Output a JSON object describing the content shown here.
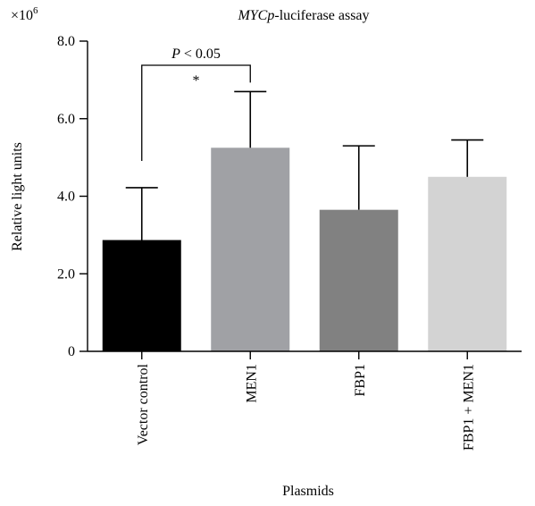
{
  "chart_data": {
    "type": "bar",
    "title_prefix": "MYCp",
    "title_suffix": "-luciferase assay",
    "xlabel": "Plasmids",
    "ylabel": "Relative light units",
    "y_multiplier": "×10",
    "y_multiplier_exp": "6",
    "ylim": [
      0,
      8.0
    ],
    "yticks": [
      0,
      2.0,
      4.0,
      6.0,
      8.0
    ],
    "ytick_labels": [
      "0",
      "2.0",
      "4.0",
      "6.0",
      "8.0"
    ],
    "categories": [
      "Vector control",
      "MEN1",
      "FBP1",
      "FBP1 + MEN1"
    ],
    "values": [
      2.87,
      5.25,
      3.65,
      4.5
    ],
    "error_upper": [
      4.22,
      6.7,
      5.3,
      5.45
    ],
    "colors": [
      "#000000",
      "#a0a1a5",
      "#818181",
      "#d3d3d3"
    ],
    "significance": {
      "from": 0,
      "to": 1,
      "label": "P < 0.05",
      "star": "*"
    }
  }
}
